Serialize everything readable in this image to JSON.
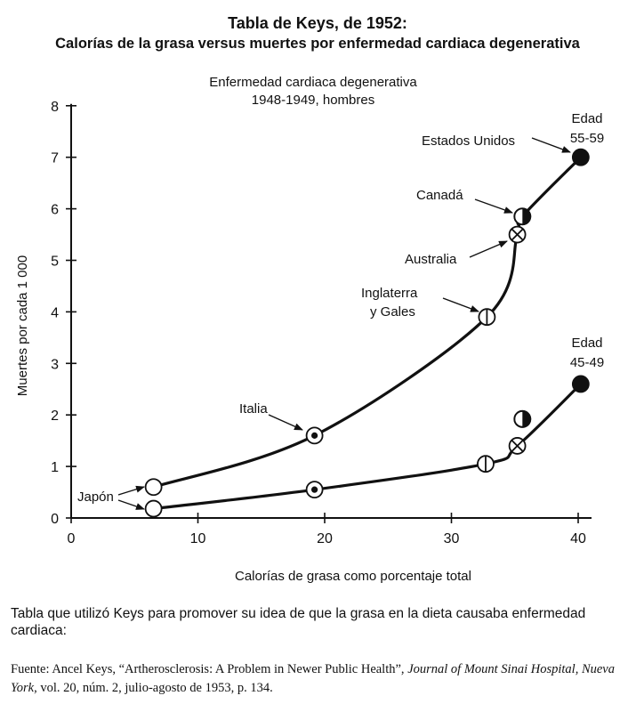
{
  "chart_data": {
    "type": "scatter",
    "title": "Tabla de Keys, de 1952:",
    "subtitle": "Calorías de la grasa versus muertes por enfermedad cardiaca degenerativa",
    "inner_title_line1": "Enfermedad cardiaca degenerativa",
    "inner_title_line2": "1948-1949, hombres",
    "xlabel": "Calorías de grasa como porcentaje total",
    "ylabel": "Muertes por cada 1 000",
    "xlim": [
      0,
      41
    ],
    "ylim": [
      0,
      8
    ],
    "xticks": [
      0,
      10,
      20,
      30,
      40
    ],
    "yticks": [
      0,
      1,
      2,
      3,
      4,
      5,
      6,
      7,
      8
    ],
    "series": [
      {
        "name": "Edad 55-59",
        "label_line1": "Edad",
        "label_line2": "55-59",
        "points": [
          {
            "country": "Japón",
            "x": 6.5,
            "y": 0.6,
            "marker": "open"
          },
          {
            "country": "Italia",
            "x": 19.2,
            "y": 1.6,
            "marker": "dot"
          },
          {
            "country": "Inglaterra y Gales",
            "x": 32.8,
            "y": 3.9,
            "marker": "vline"
          },
          {
            "country": "Australia",
            "x": 35.2,
            "y": 5.5,
            "marker": "cross"
          },
          {
            "country": "Canadá",
            "x": 35.6,
            "y": 5.85,
            "marker": "half"
          },
          {
            "country": "Estados Unidos",
            "x": 40.2,
            "y": 7.0,
            "marker": "filled"
          }
        ]
      },
      {
        "name": "Edad 45-49",
        "label_line1": "Edad",
        "label_line2": "45-49",
        "points": [
          {
            "country": "Japón",
            "x": 6.5,
            "y": 0.18,
            "marker": "open"
          },
          {
            "country": "Italia",
            "x": 19.2,
            "y": 0.55,
            "marker": "dot"
          },
          {
            "country": "Inglaterra y Gales",
            "x": 32.7,
            "y": 1.05,
            "marker": "vline"
          },
          {
            "country": "Australia",
            "x": 35.2,
            "y": 1.4,
            "marker": "cross"
          },
          {
            "country": "Canadá",
            "x": 35.6,
            "y": 1.92,
            "marker": "half"
          },
          {
            "country": "Estados Unidos",
            "x": 40.2,
            "y": 2.6,
            "marker": "filled"
          }
        ]
      }
    ],
    "annotations": {
      "japon": "Japón",
      "italia": "Italia",
      "inglaterra_line1": "Inglaterra",
      "inglaterra_line2": "y Gales",
      "australia": "Australia",
      "canada": "Canadá",
      "estados_unidos": "Estados Unidos"
    }
  },
  "caption": {
    "description": "Tabla que utilizó Keys para promover su idea de que la grasa en la dieta causaba enfermedad cardiaca:",
    "source_prefix": "Fuente: Ancel Keys, “Artherosclerosis: A Problem in Newer Public Health”, ",
    "source_journal": "Journal of Mount Sinai Hospital, Nueva York",
    "source_suffix": ", vol. 20, núm. 2, julio-agosto de 1953, p. 134."
  }
}
